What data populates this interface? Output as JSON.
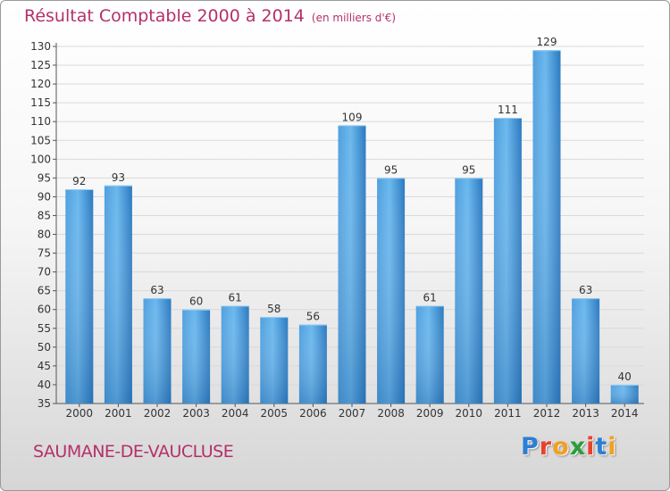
{
  "title": "Résultat Comptable 2000 à 2014",
  "unit_note": "(en milliers d'€)",
  "town": "SAUMANE-DE-VAUCLUSE",
  "logo": {
    "text": "Proxiti",
    "colors": [
      "#2b7fd4",
      "#e8422b",
      "#f0a020",
      "#2a9d3c",
      "#e8422b",
      "#2b7fd4",
      "#f0a020"
    ]
  },
  "colors": {
    "bar_light": "#6bb8ee",
    "bar_dark": "#2576bc",
    "title": "#b5306a",
    "grid": "#d9d9d9"
  },
  "chart_data": {
    "type": "bar",
    "categories": [
      "2000",
      "2001",
      "2002",
      "2003",
      "2004",
      "2005",
      "2006",
      "2007",
      "2008",
      "2009",
      "2010",
      "2011",
      "2012",
      "2013",
      "2014"
    ],
    "values": [
      92,
      93,
      63,
      60,
      61,
      58,
      56,
      109,
      95,
      61,
      95,
      111,
      129,
      63,
      40
    ],
    "ylim": [
      35,
      130
    ],
    "ytick_step": 5,
    "yticks": [
      "35",
      "40",
      "45",
      "50",
      "55",
      "60",
      "65",
      "70",
      "75",
      "80",
      "85",
      "90",
      "95",
      "100",
      "105",
      "110",
      "115",
      "120",
      "125",
      "130"
    ],
    "grid": true,
    "legend": "none"
  }
}
